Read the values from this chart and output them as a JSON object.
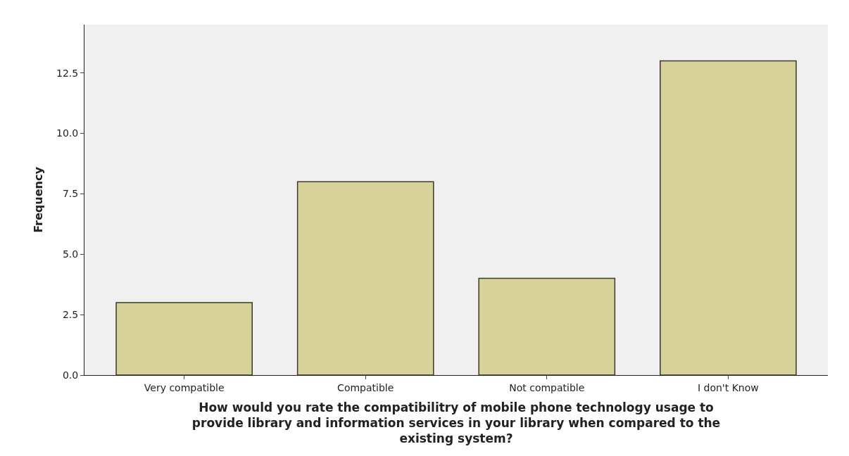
{
  "chart_data": {
    "type": "bar",
    "xlabel": "How would you rate the compatibilitry of mobile phone technology usage to provide library and information services in your library when compared to the existing system?",
    "ylabel": "Frequency",
    "categories": [
      "Very compatible",
      "Compatible",
      "Not compatible",
      "I don't Know"
    ],
    "values": [
      3,
      8,
      4,
      13
    ],
    "color": "#d6d29a",
    "ylim": [
      0,
      14.5
    ],
    "yticks": [
      {
        "value": 0,
        "label": "0.0"
      },
      {
        "value": 2.5,
        "label": "2.5"
      },
      {
        "value": 5,
        "label": "5.0"
      },
      {
        "value": 7.5,
        "label": "7.5"
      },
      {
        "value": 10,
        "label": "10.0"
      },
      {
        "value": 12.5,
        "label": "12.5"
      }
    ],
    "grid": false
  }
}
